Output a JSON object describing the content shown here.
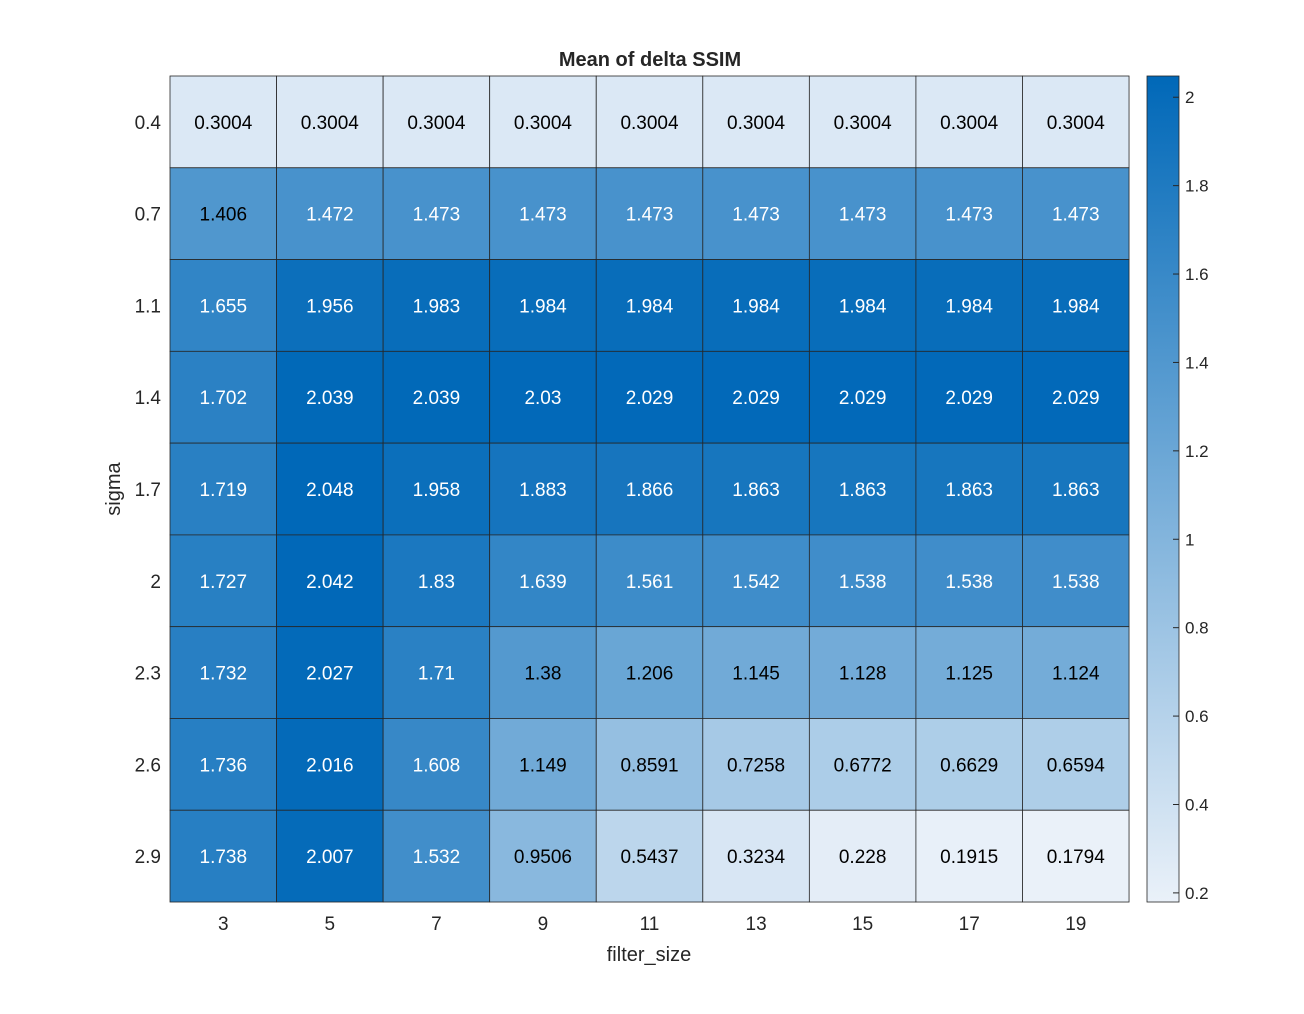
{
  "chart_data": {
    "type": "heatmap",
    "title": "Mean of delta SSIM",
    "xlabel": "filter_size",
    "ylabel": "sigma",
    "x_categories": [
      "3",
      "5",
      "7",
      "9",
      "11",
      "13",
      "15",
      "17",
      "19"
    ],
    "y_categories": [
      "0.4",
      "0.7",
      "1.1",
      "1.4",
      "1.7",
      "2",
      "2.3",
      "2.6",
      "2.9"
    ],
    "values": [
      [
        0.3004,
        0.3004,
        0.3004,
        0.3004,
        0.3004,
        0.3004,
        0.3004,
        0.3004,
        0.3004
      ],
      [
        1.406,
        1.472,
        1.473,
        1.473,
        1.473,
        1.473,
        1.473,
        1.473,
        1.473
      ],
      [
        1.655,
        1.956,
        1.983,
        1.984,
        1.984,
        1.984,
        1.984,
        1.984,
        1.984
      ],
      [
        1.702,
        2.039,
        2.039,
        2.03,
        2.029,
        2.029,
        2.029,
        2.029,
        2.029
      ],
      [
        1.719,
        2.048,
        1.958,
        1.883,
        1.866,
        1.863,
        1.863,
        1.863,
        1.863
      ],
      [
        1.727,
        2.042,
        1.83,
        1.639,
        1.561,
        1.542,
        1.538,
        1.538,
        1.538
      ],
      [
        1.732,
        2.027,
        1.71,
        1.38,
        1.206,
        1.145,
        1.128,
        1.125,
        1.124
      ],
      [
        1.736,
        2.016,
        1.608,
        1.149,
        0.8591,
        0.7258,
        0.6772,
        0.6629,
        0.6594
      ],
      [
        1.738,
        2.007,
        1.532,
        0.9506,
        0.5437,
        0.3234,
        0.228,
        0.1915,
        0.1794
      ]
    ],
    "colorbar": {
      "ticks": [
        0.2,
        0.4,
        0.6,
        0.8,
        1,
        1.2,
        1.4,
        1.6,
        1.8,
        2
      ],
      "tick_labels": [
        "0.2",
        "0.4",
        "0.6",
        "0.8",
        "1",
        "1.2",
        "1.4",
        "1.6",
        "1.8",
        "2"
      ],
      "range": [
        0.1794,
        2.048
      ]
    },
    "colormap": {
      "low": "#eaf1f9",
      "high": "#0068b8"
    },
    "grid": true,
    "legend": "colorbar-right"
  }
}
